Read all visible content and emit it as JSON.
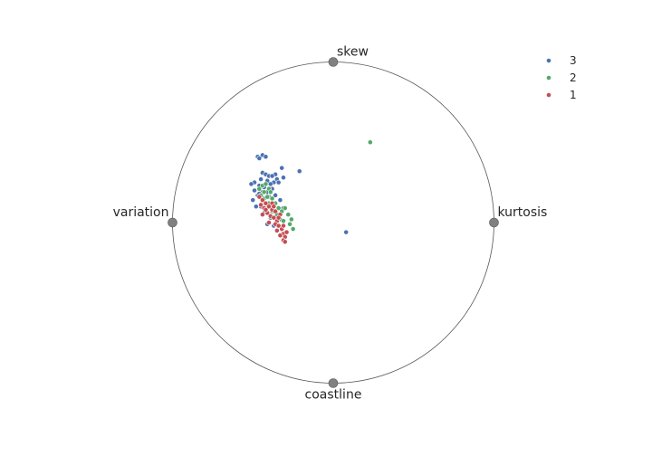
{
  "chart_data": {
    "type": "scatter",
    "subtype": "radviz",
    "title": "",
    "anchors": [
      "kurtosis",
      "skew",
      "variation",
      "coastline"
    ],
    "legend": {
      "position": "top-right",
      "entries": [
        "3",
        "2",
        "1"
      ]
    },
    "colors": {
      "3": "#4c72b0",
      "2": "#55a868",
      "1": "#c44e52",
      "anchor": "#808080",
      "circle": "#555555"
    },
    "grid": false,
    "axis_range": {
      "x": [
        -1,
        1
      ],
      "y": [
        -1,
        1
      ]
    },
    "series": [
      {
        "name": "3",
        "points": [
          [
            -0.47,
            0.41
          ],
          [
            -0.44,
            0.42
          ],
          [
            -0.42,
            0.41
          ],
          [
            -0.46,
            0.4
          ],
          [
            -0.32,
            0.34
          ],
          [
            -0.36,
            0.3
          ],
          [
            -0.31,
            0.28
          ],
          [
            -0.21,
            0.32
          ],
          [
            -0.44,
            0.31
          ],
          [
            -0.42,
            0.3
          ],
          [
            -0.4,
            0.29
          ],
          [
            -0.38,
            0.29
          ],
          [
            -0.35,
            0.27
          ],
          [
            -0.45,
            0.27
          ],
          [
            -0.41,
            0.26
          ],
          [
            -0.37,
            0.25
          ],
          [
            -0.49,
            0.25
          ],
          [
            -0.51,
            0.24
          ],
          [
            -0.46,
            0.23
          ],
          [
            -0.43,
            0.22
          ],
          [
            -0.39,
            0.24
          ],
          [
            -0.34,
            0.25
          ],
          [
            -0.38,
            0.21
          ],
          [
            -0.49,
            0.2
          ],
          [
            -0.47,
            0.17
          ],
          [
            -0.44,
            0.19
          ],
          [
            -0.41,
            0.19
          ],
          [
            -0.36,
            0.17
          ],
          [
            -0.5,
            0.14
          ],
          [
            -0.48,
            0.1
          ],
          [
            -0.45,
            0.1
          ],
          [
            -0.4,
            0.12
          ],
          [
            -0.38,
            0.09
          ],
          [
            -0.33,
            0.14
          ],
          [
            -0.31,
            0.09
          ],
          [
            -0.43,
            0.06
          ],
          [
            -0.39,
            0.03
          ],
          [
            0.08,
            -0.06
          ],
          [
            -0.41,
            -0.01
          ],
          [
            -0.37,
            -0.02
          ],
          [
            -0.46,
            0.18
          ],
          [
            -0.4,
            0.16
          ]
        ]
      },
      {
        "name": "2",
        "points": [
          [
            0.23,
            0.5
          ],
          [
            -0.46,
            0.21
          ],
          [
            -0.44,
            0.23
          ],
          [
            -0.42,
            0.24
          ],
          [
            -0.4,
            0.21
          ],
          [
            -0.39,
            0.19
          ],
          [
            -0.45,
            0.17
          ],
          [
            -0.43,
            0.15
          ],
          [
            -0.41,
            0.16
          ],
          [
            -0.38,
            0.15
          ],
          [
            -0.36,
            0.12
          ],
          [
            -0.34,
            0.09
          ],
          [
            -0.32,
            0.07
          ],
          [
            -0.3,
            0.09
          ],
          [
            -0.28,
            0.05
          ],
          [
            -0.26,
            0.02
          ],
          [
            -0.35,
            0.05
          ],
          [
            -0.33,
            0.02
          ],
          [
            -0.38,
            0.07
          ],
          [
            -0.31,
            0.01
          ],
          [
            -0.27,
            -0.01
          ],
          [
            -0.25,
            -0.04
          ],
          [
            -0.4,
            0.12
          ],
          [
            -0.43,
            0.19
          ]
        ]
      },
      {
        "name": "1",
        "points": [
          [
            -0.46,
            0.16
          ],
          [
            -0.44,
            0.14
          ],
          [
            -0.42,
            0.12
          ],
          [
            -0.45,
            0.11
          ],
          [
            -0.43,
            0.09
          ],
          [
            -0.4,
            0.1
          ],
          [
            -0.38,
            0.08
          ],
          [
            -0.41,
            0.06
          ],
          [
            -0.39,
            0.04
          ],
          [
            -0.36,
            0.07
          ],
          [
            -0.37,
            0.03
          ],
          [
            -0.35,
            0.01
          ],
          [
            -0.42,
            0.08
          ],
          [
            -0.38,
            0.12
          ],
          [
            -0.33,
            0.05
          ],
          [
            -0.36,
            -0.01
          ],
          [
            -0.34,
            -0.02
          ],
          [
            -0.32,
            -0.04
          ],
          [
            -0.35,
            -0.05
          ],
          [
            -0.31,
            -0.07
          ],
          [
            -0.33,
            -0.08
          ],
          [
            -0.3,
            -0.09
          ],
          [
            -0.31,
            -0.11
          ],
          [
            -0.3,
            -0.12
          ],
          [
            -0.4,
            0.0
          ],
          [
            -0.44,
            0.05
          ],
          [
            -0.37,
            0.1
          ],
          [
            -0.34,
            0.03
          ],
          [
            -0.31,
            -0.02
          ],
          [
            -0.29,
            -0.06
          ]
        ]
      }
    ]
  }
}
